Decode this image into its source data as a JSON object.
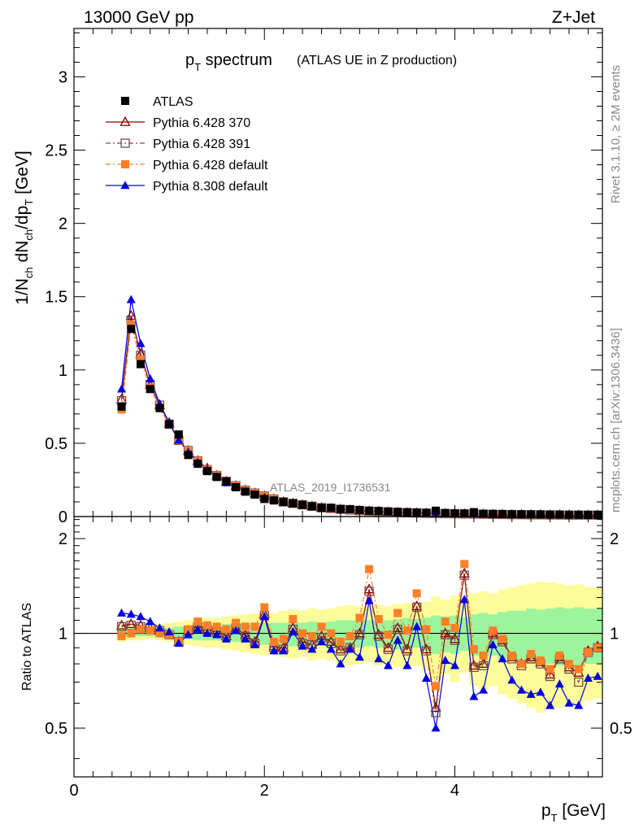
{
  "header": {
    "left": "13000 GeV pp",
    "right": "Z+Jet"
  },
  "side_labels": {
    "top": "Rivet 3.1.10, ≥ 2M events",
    "bottom": "mcplots.cern.ch [arXiv:1306.3436]"
  },
  "colors": {
    "atlas": "#000000",
    "p370": "#8b0000",
    "p391": "#7a4a4a",
    "p6def": "#ff7f27",
    "p8def": "#0000e0",
    "band_green": "#9cf59c",
    "band_yellow": "#fcfc9a"
  },
  "chart_data": [
    {
      "type": "line",
      "title": "pT spectrum",
      "title_main": "p",
      "title_sub": "T",
      "title_rest": " spectrum",
      "title_extra": "(ATLAS UE in Z production)",
      "ylabel": "1/N_ch dN_ch/dp_T [GeV]",
      "xlim": [
        0,
        5.55
      ],
      "ylim": [
        0,
        3.33
      ],
      "yticks": [
        "0",
        "0.5",
        "1",
        "1.5",
        "2",
        "2.5",
        "3"
      ],
      "yticks_values": [
        0,
        0.5,
        1,
        1.5,
        2,
        2.5,
        3
      ],
      "watermark": "ATLAS_2019_I1736531",
      "x": [
        0.5,
        0.6,
        0.7,
        0.8,
        0.9,
        1.0,
        1.1,
        1.2,
        1.3,
        1.4,
        1.5,
        1.6,
        1.7,
        1.8,
        1.9,
        2.0,
        2.1,
        2.2,
        2.3,
        2.4,
        2.5,
        2.6,
        2.7,
        2.8,
        2.9,
        3.0,
        3.1,
        3.2,
        3.3,
        3.4,
        3.5,
        3.6,
        3.7,
        3.8,
        3.9,
        4.0,
        4.1,
        4.2,
        4.3,
        4.4,
        4.5,
        4.6,
        4.7,
        4.8,
        4.9,
        5.0,
        5.1,
        5.2,
        5.3,
        5.4,
        5.5
      ],
      "legend": [
        "ATLAS",
        "Pythia 6.428 370",
        "Pythia 6.428 391",
        "Pythia 6.428 default",
        "Pythia 8.308 default"
      ],
      "series": [
        {
          "name": "ATLAS",
          "values": [
            0.75,
            1.28,
            1.04,
            0.87,
            0.74,
            0.63,
            0.56,
            0.42,
            0.36,
            0.31,
            0.27,
            0.24,
            0.2,
            0.17,
            0.15,
            0.12,
            0.11,
            0.1,
            0.09,
            0.08,
            0.07,
            0.06,
            0.06,
            0.05,
            0.05,
            0.045,
            0.04,
            0.038,
            0.035,
            0.032,
            0.03,
            0.028,
            0.026,
            0.04,
            0.024,
            0.022,
            0.021,
            0.03,
            0.019,
            0.018,
            0.017,
            0.016,
            0.015,
            0.015,
            0.014,
            0.013,
            0.013,
            0.012,
            0.012,
            0.011,
            0.011
          ]
        },
        {
          "name": "Pythia 6.428 370",
          "values": [
            0.8,
            1.37,
            1.11,
            0.9,
            0.76,
            0.64,
            0.52,
            0.45,
            0.38,
            0.33,
            0.28,
            0.24,
            0.21,
            0.18,
            0.16,
            0.14,
            0.12,
            0.1,
            0.09,
            0.08,
            0.07,
            0.06,
            0.055,
            0.05,
            0.045,
            0.04,
            0.037,
            0.034,
            0.031,
            0.028,
            0.026,
            0.024,
            0.022,
            0.021,
            0.02,
            0.019,
            0.018,
            0.017,
            0.016,
            0.015,
            0.014,
            0.013,
            0.013,
            0.012,
            0.012,
            0.011,
            0.011,
            0.01,
            0.01,
            0.01,
            0.01
          ]
        },
        {
          "name": "Pythia 6.428 391",
          "values": [
            0.79,
            1.34,
            1.1,
            0.9,
            0.76,
            0.63,
            0.52,
            0.45,
            0.38,
            0.32,
            0.28,
            0.24,
            0.21,
            0.18,
            0.16,
            0.14,
            0.12,
            0.1,
            0.09,
            0.08,
            0.07,
            0.06,
            0.055,
            0.05,
            0.045,
            0.04,
            0.037,
            0.034,
            0.031,
            0.028,
            0.026,
            0.024,
            0.022,
            0.021,
            0.02,
            0.019,
            0.018,
            0.017,
            0.016,
            0.015,
            0.014,
            0.013,
            0.013,
            0.012,
            0.012,
            0.011,
            0.011,
            0.01,
            0.01,
            0.01,
            0.01
          ]
        },
        {
          "name": "Pythia 6.428 default",
          "values": [
            0.73,
            1.31,
            1.07,
            0.88,
            0.74,
            0.63,
            0.52,
            0.45,
            0.38,
            0.32,
            0.28,
            0.24,
            0.21,
            0.18,
            0.16,
            0.14,
            0.12,
            0.1,
            0.09,
            0.08,
            0.07,
            0.06,
            0.055,
            0.05,
            0.045,
            0.04,
            0.037,
            0.034,
            0.031,
            0.028,
            0.026,
            0.024,
            0.022,
            0.021,
            0.02,
            0.019,
            0.018,
            0.017,
            0.016,
            0.015,
            0.014,
            0.013,
            0.013,
            0.012,
            0.012,
            0.011,
            0.011,
            0.01,
            0.01,
            0.01,
            0.01
          ]
        },
        {
          "name": "Pythia 8.308 default",
          "values": [
            0.87,
            1.48,
            1.18,
            0.94,
            0.77,
            0.64,
            0.52,
            0.44,
            0.37,
            0.32,
            0.27,
            0.23,
            0.2,
            0.17,
            0.15,
            0.13,
            0.11,
            0.1,
            0.09,
            0.08,
            0.07,
            0.06,
            0.055,
            0.05,
            0.045,
            0.04,
            0.037,
            0.034,
            0.031,
            0.028,
            0.026,
            0.024,
            0.022,
            0.02,
            0.019,
            0.018,
            0.017,
            0.016,
            0.015,
            0.014,
            0.013,
            0.012,
            0.012,
            0.011,
            0.011,
            0.01,
            0.01,
            0.01,
            0.009,
            0.009,
            0.009
          ]
        }
      ]
    },
    {
      "type": "line",
      "ylabel": "Ratio to ATLAS",
      "xlabel": "p_T [GeV]",
      "xlabel_main": "p",
      "xlabel_sub": "T",
      "xlabel_rest": " [GeV]",
      "xlim": [
        0,
        5.55
      ],
      "ylim": [
        0.35,
        2.35
      ],
      "xticks": [
        "0",
        "2",
        "4"
      ],
      "xticks_values": [
        0,
        2,
        4
      ],
      "yticks": [
        "0.5",
        "1",
        "2"
      ],
      "yticks_values": [
        0.5,
        1,
        2
      ],
      "x": [
        0.5,
        0.6,
        0.7,
        0.8,
        0.9,
        1.0,
        1.1,
        1.2,
        1.3,
        1.4,
        1.5,
        1.6,
        1.7,
        1.8,
        1.9,
        2.0,
        2.1,
        2.2,
        2.3,
        2.4,
        2.5,
        2.6,
        2.7,
        2.8,
        2.9,
        3.0,
        3.1,
        3.2,
        3.3,
        3.4,
        3.5,
        3.6,
        3.7,
        3.8,
        3.9,
        4.0,
        4.1,
        4.2,
        4.3,
        4.4,
        4.5,
        4.6,
        4.7,
        4.8,
        4.9,
        5.0,
        5.1,
        5.2,
        5.3,
        5.4,
        5.5
      ],
      "band_green": {
        "lo": [
          0.97,
          0.98,
          0.98,
          0.98,
          0.97,
          0.97,
          0.96,
          0.96,
          0.95,
          0.95,
          0.95,
          0.95,
          0.94,
          0.94,
          0.93,
          0.92,
          0.93,
          0.92,
          0.91,
          0.92,
          0.91,
          0.92,
          0.91,
          0.9,
          0.9,
          0.9,
          0.91,
          0.9,
          0.9,
          0.89,
          0.89,
          0.9,
          0.88,
          0.86,
          0.87,
          0.86,
          0.88,
          0.85,
          0.84,
          0.85,
          0.83,
          0.82,
          0.82,
          0.8,
          0.81,
          0.8,
          0.79,
          0.8,
          0.79,
          0.8,
          0.8
        ],
        "hi": [
          1.03,
          1.03,
          1.03,
          1.03,
          1.04,
          1.04,
          1.05,
          1.05,
          1.06,
          1.06,
          1.06,
          1.07,
          1.07,
          1.07,
          1.08,
          1.08,
          1.08,
          1.08,
          1.09,
          1.08,
          1.09,
          1.08,
          1.09,
          1.1,
          1.1,
          1.1,
          1.1,
          1.11,
          1.1,
          1.11,
          1.12,
          1.11,
          1.12,
          1.14,
          1.13,
          1.14,
          1.12,
          1.15,
          1.16,
          1.15,
          1.17,
          1.18,
          1.18,
          1.2,
          1.19,
          1.2,
          1.21,
          1.2,
          1.21,
          1.2,
          1.2
        ]
      },
      "band_yellow": {
        "lo": [
          0.94,
          0.95,
          0.95,
          0.96,
          0.95,
          0.94,
          0.93,
          0.92,
          0.91,
          0.9,
          0.9,
          0.89,
          0.88,
          0.87,
          0.86,
          0.85,
          0.86,
          0.84,
          0.83,
          0.84,
          0.82,
          0.83,
          0.82,
          0.8,
          0.79,
          0.8,
          0.81,
          0.79,
          0.8,
          0.78,
          0.77,
          0.79,
          0.76,
          0.71,
          0.74,
          0.7,
          0.75,
          0.68,
          0.66,
          0.68,
          0.64,
          0.62,
          0.6,
          0.58,
          0.56,
          0.57,
          0.58,
          0.6,
          0.59,
          0.61,
          0.62
        ],
        "hi": [
          1.06,
          1.06,
          1.06,
          1.05,
          1.07,
          1.08,
          1.09,
          1.1,
          1.11,
          1.12,
          1.12,
          1.13,
          1.14,
          1.15,
          1.16,
          1.17,
          1.16,
          1.18,
          1.19,
          1.18,
          1.2,
          1.19,
          1.2,
          1.22,
          1.23,
          1.22,
          1.21,
          1.23,
          1.22,
          1.24,
          1.25,
          1.23,
          1.26,
          1.31,
          1.28,
          1.32,
          1.27,
          1.34,
          1.36,
          1.34,
          1.38,
          1.4,
          1.42,
          1.44,
          1.46,
          1.45,
          1.44,
          1.42,
          1.43,
          1.41,
          1.4
        ]
      },
      "series": [
        {
          "name": "Pythia 6.428 370",
          "values": [
            1.06,
            1.07,
            1.06,
            1.04,
            1.02,
            1.0,
            0.94,
            1.02,
            1.05,
            1.03,
            1.02,
            0.98,
            1.04,
            0.99,
            0.94,
            1.15,
            0.91,
            0.9,
            1.04,
            0.94,
            0.92,
            0.98,
            0.94,
            0.89,
            0.9,
            1.0,
            1.38,
            0.99,
            0.9,
            1.04,
            0.89,
            1.22,
            0.89,
            0.58,
            1.0,
            0.96,
            1.55,
            0.79,
            0.8,
            1.0,
            0.95,
            0.84,
            0.8,
            0.84,
            0.81,
            0.74,
            0.84,
            0.78,
            0.75,
            0.88,
            0.91
          ]
        },
        {
          "name": "Pythia 6.428 391",
          "values": [
            1.05,
            1.06,
            1.05,
            1.04,
            1.02,
            0.99,
            0.94,
            1.02,
            1.05,
            1.02,
            1.01,
            0.98,
            1.04,
            0.98,
            0.93,
            1.14,
            0.9,
            0.89,
            1.03,
            0.93,
            0.92,
            0.97,
            0.93,
            0.88,
            0.9,
            0.99,
            1.36,
            0.98,
            0.89,
            1.03,
            0.88,
            1.21,
            0.88,
            0.56,
            0.99,
            0.95,
            1.53,
            0.78,
            0.79,
            0.99,
            0.94,
            0.83,
            0.79,
            0.83,
            0.8,
            0.73,
            0.83,
            0.77,
            0.7,
            0.87,
            0.9
          ]
        },
        {
          "name": "Pythia 6.428 default",
          "values": [
            0.98,
            1.0,
            1.03,
            1.02,
            1.0,
            0.99,
            0.94,
            1.03,
            1.09,
            1.06,
            1.05,
            1.03,
            1.08,
            1.05,
            1.05,
            1.21,
            0.94,
            0.96,
            1.11,
            1.0,
            0.98,
            1.05,
            1.0,
            0.94,
            0.98,
            1.12,
            1.6,
            1.11,
            0.99,
            1.16,
            1.02,
            1.34,
            1.03,
            0.68,
            1.09,
            1.04,
            1.66,
            0.89,
            0.85,
            1.02,
            0.96,
            0.85,
            0.8,
            0.86,
            0.82,
            0.77,
            0.85,
            0.8,
            0.77,
            0.87,
            0.9
          ]
        },
        {
          "name": "Pythia 8.308 default",
          "values": [
            1.16,
            1.15,
            1.13,
            1.09,
            1.04,
            1.01,
            0.93,
            0.99,
            1.03,
            1.0,
            0.99,
            0.96,
            1.02,
            0.96,
            0.92,
            1.13,
            0.88,
            0.88,
            1.01,
            0.91,
            0.89,
            0.94,
            0.89,
            0.8,
            0.89,
            0.84,
            1.27,
            0.83,
            0.79,
            0.95,
            0.79,
            1.05,
            0.72,
            0.5,
            0.82,
            0.79,
            1.28,
            0.63,
            0.66,
            0.92,
            0.83,
            0.71,
            0.66,
            0.64,
            0.65,
            0.59,
            0.69,
            0.6,
            0.59,
            0.72,
            0.73
          ]
        }
      ]
    }
  ]
}
